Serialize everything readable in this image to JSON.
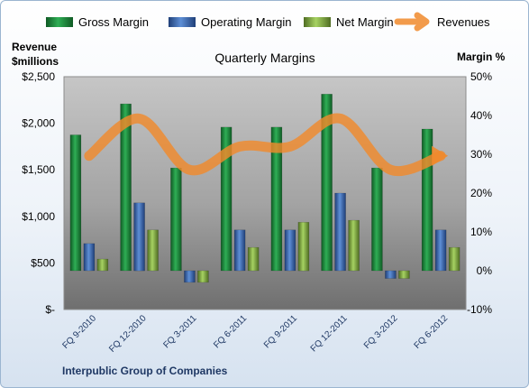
{
  "chart_data": {
    "type": "bar",
    "title": "Quarterly Margins",
    "categories": [
      "FQ 9-2010",
      "FQ 12-2010",
      "FQ 3-2011",
      "FQ 6-2011",
      "FQ 9-2011",
      "FQ 12-2011",
      "FQ 3-2012",
      "FQ 6-2012"
    ],
    "series": [
      {
        "name": "Gross Margin",
        "kind": "bar",
        "axis": "right",
        "color": "#1e8a3e",
        "values": [
          35.0,
          43.0,
          26.5,
          37.0,
          37.0,
          45.5,
          26.5,
          36.5
        ]
      },
      {
        "name": "Operating Margin",
        "kind": "bar",
        "axis": "right",
        "color": "#3f6fb6",
        "values": [
          7.0,
          17.5,
          -3.0,
          10.5,
          10.5,
          20.0,
          -2.0,
          10.5
        ]
      },
      {
        "name": "Net Margin",
        "kind": "bar",
        "axis": "right",
        "color": "#8cb84a",
        "values": [
          3.0,
          10.5,
          -3.0,
          6.0,
          12.5,
          13.0,
          -2.0,
          6.0
        ]
      },
      {
        "name": "Revenues",
        "kind": "line",
        "axis": "left",
        "color": "#f08a2c",
        "values": [
          1650,
          2050,
          1500,
          1750,
          1750,
          2050,
          1500,
          1650
        ]
      }
    ],
    "left_axis": {
      "label_line1": "Revenue",
      "label_line2": "$millions",
      "ylim": [
        0,
        2500
      ],
      "ticks": [
        0,
        500,
        1000,
        1500,
        2000,
        2500
      ],
      "tick_labels": [
        "$-",
        "$500",
        "$1,000",
        "$1,500",
        "$2,000",
        "$2,500"
      ]
    },
    "right_axis": {
      "label": "Margin %",
      "ylim": [
        -10,
        50
      ],
      "ticks": [
        -10,
        0,
        10,
        20,
        30,
        40,
        50
      ],
      "tick_labels": [
        "-10%",
        "0%",
        "10%",
        "20%",
        "30%",
        "40%",
        "50%"
      ]
    },
    "grid": false,
    "legend_position": "top",
    "footer": "Interpublic Group of Companies"
  }
}
